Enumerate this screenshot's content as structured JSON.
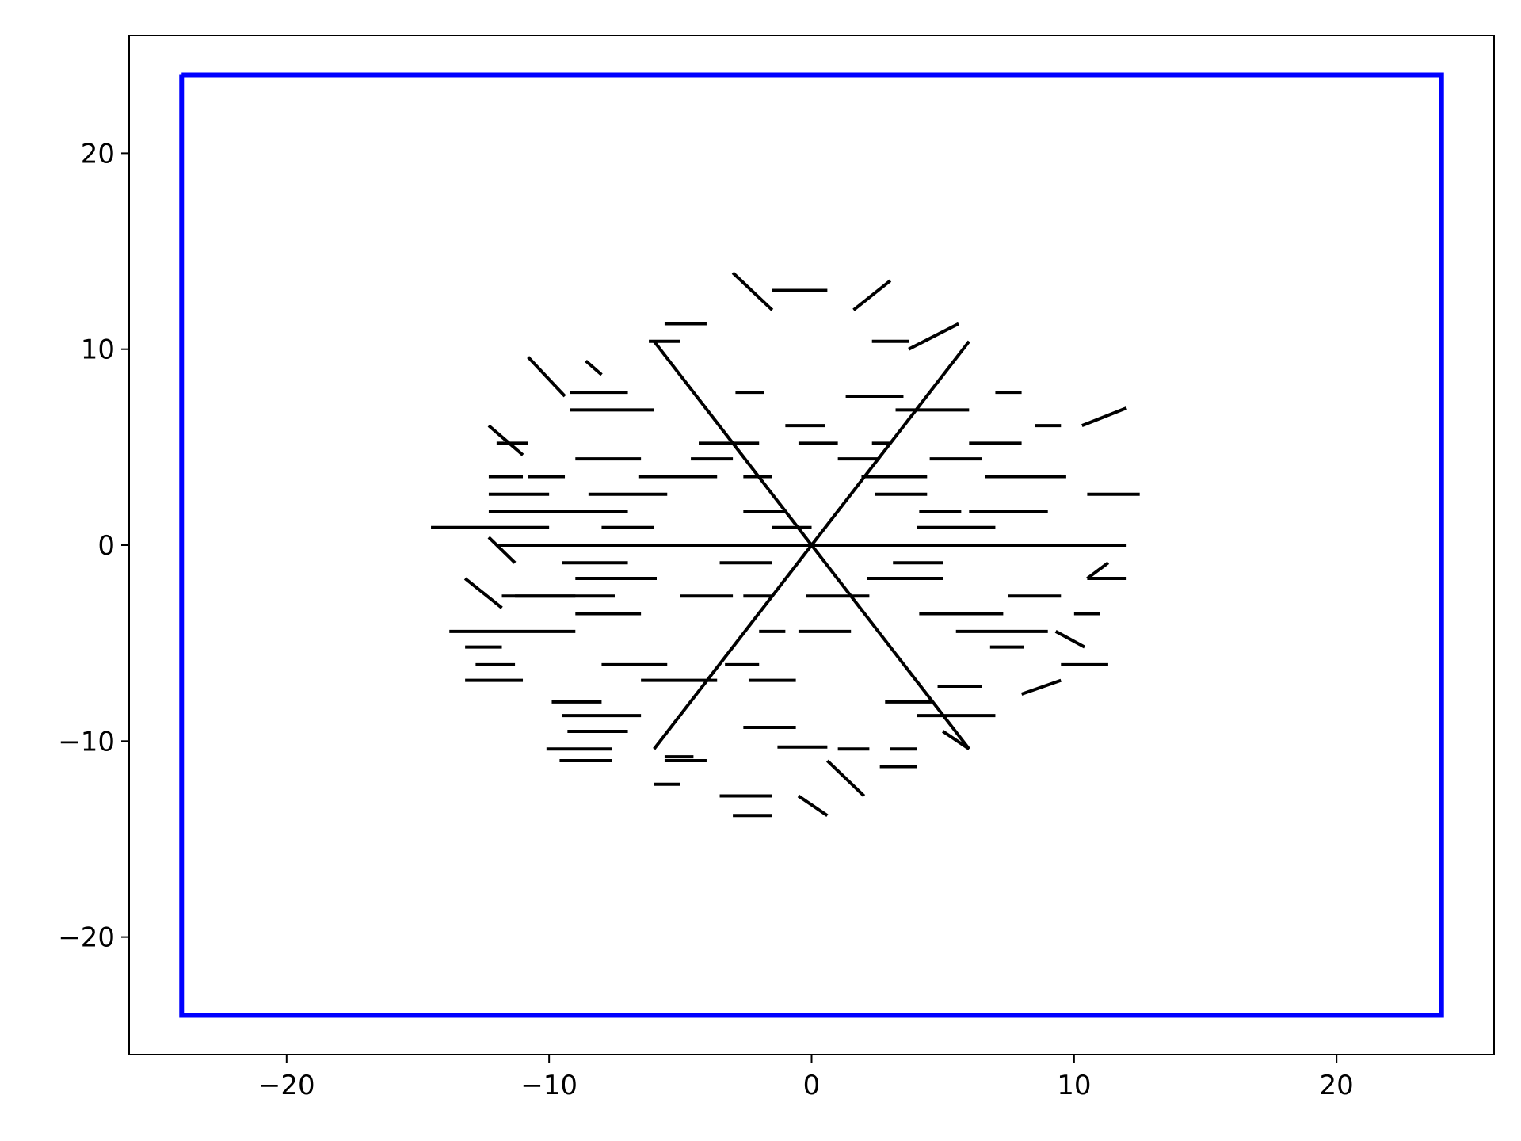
{
  "chart_data": {
    "type": "line",
    "title": "",
    "xlabel": "",
    "ylabel": "",
    "xlim": [
      -26,
      26
    ],
    "ylim": [
      -26,
      26
    ],
    "xticks": [
      -20,
      -10,
      0,
      10,
      20
    ],
    "yticks": [
      20,
      10,
      0,
      -10,
      -20
    ],
    "xtick_labels": [
      "−20",
      "−10",
      "0",
      "10",
      "20"
    ],
    "ytick_labels": [
      "20",
      "10",
      "0",
      "−10",
      "−20"
    ],
    "grid": false,
    "legend": "none",
    "colors": {
      "boundary": "#0000ff",
      "structure": "#000000",
      "axes": "#000000"
    },
    "series": [
      {
        "role": "boundary",
        "x": [
          -24,
          24,
          24,
          -24,
          -24
        ],
        "y": [
          24,
          24,
          -24,
          -24,
          24
        ]
      },
      {
        "role": "structure",
        "segments": [
          [
            [
              0,
              0
            ],
            [
              12,
              0
            ]
          ],
          [
            [
              0,
              0
            ],
            [
              -12,
              0
            ]
          ],
          [
            [
              0,
              0
            ],
            [
              6,
              10.4
            ]
          ],
          [
            [
              0,
              0
            ],
            [
              -6,
              10.4
            ]
          ],
          [
            [
              0,
              0
            ],
            [
              6,
              -10.4
            ]
          ],
          [
            [
              0,
              0
            ],
            [
              -6,
              -10.4
            ]
          ],
          [
            [
              -14.5,
              0.9
            ],
            [
              -10,
              0.9
            ]
          ],
          [
            [
              10.5,
              2.6
            ],
            [
              12.5,
              2.6
            ]
          ],
          [
            [
              10.5,
              -1.7
            ],
            [
              12,
              -1.7
            ]
          ],
          [
            [
              -1.5,
              13
            ],
            [
              0.6,
              13
            ]
          ],
          [
            [
              -3,
              13.9
            ],
            [
              -1.5,
              12
            ]
          ],
          [
            [
              3,
              13.5
            ],
            [
              1.6,
              12
            ]
          ],
          [
            [
              -10.8,
              9.6
            ],
            [
              -9.4,
              7.6
            ]
          ],
          [
            [
              -12.3,
              6.1
            ],
            [
              -11,
              4.6
            ]
          ],
          [
            [
              -13.2,
              -1.7
            ],
            [
              -11.8,
              -3.2
            ]
          ],
          [
            [
              -13.8,
              -4.4
            ],
            [
              -9,
              -4.4
            ]
          ],
          [
            [
              -13.2,
              -6.9
            ],
            [
              -11,
              -6.9
            ]
          ],
          [
            [
              -10.1,
              -10.4
            ],
            [
              -7.6,
              -10.4
            ]
          ],
          [
            [
              -9.6,
              -11
            ],
            [
              -7.6,
              -11
            ]
          ],
          [
            [
              -5.6,
              -11
            ],
            [
              -4,
              -11
            ]
          ],
          [
            [
              -3.5,
              -12.8
            ],
            [
              -1.5,
              -12.8
            ]
          ],
          [
            [
              -3,
              -13.8
            ],
            [
              -1.5,
              -13.8
            ]
          ],
          [
            [
              0.6,
              -13.8
            ],
            [
              -0.5,
              -12.8
            ]
          ],
          [
            [
              2,
              -12.8
            ],
            [
              0.6,
              -11
            ]
          ],
          [
            [
              2.6,
              -11.3
            ],
            [
              4,
              -11.3
            ]
          ],
          [
            [
              3,
              -10.4
            ],
            [
              4,
              -10.4
            ]
          ],
          [
            [
              5,
              -9.5
            ],
            [
              6,
              -10.4
            ]
          ],
          [
            [
              4,
              -8.7
            ],
            [
              7,
              -8.7
            ]
          ],
          [
            [
              8,
              -7.6
            ],
            [
              9.5,
              -6.9
            ]
          ],
          [
            [
              9.5,
              -6.1
            ],
            [
              11.3,
              -6.1
            ]
          ],
          [
            [
              9.3,
              -4.4
            ],
            [
              10.4,
              -5.2
            ]
          ],
          [
            [
              10,
              -3.5
            ],
            [
              11,
              -3.5
            ]
          ],
          [
            [
              10.5,
              -1.7
            ],
            [
              11.3,
              -0.9
            ]
          ],
          [
            [
              6,
              5.2
            ],
            [
              8,
              5.2
            ]
          ],
          [
            [
              7,
              7.8
            ],
            [
              8,
              7.8
            ]
          ],
          [
            [
              8.5,
              6.1
            ],
            [
              9.5,
              6.1
            ]
          ],
          [
            [
              10.3,
              6.1
            ],
            [
              12,
              7
            ]
          ],
          [
            [
              3.7,
              10
            ],
            [
              5.6,
              11.3
            ]
          ],
          [
            [
              2.3,
              10.4
            ],
            [
              3.7,
              10.4
            ]
          ],
          [
            [
              -5.6,
              11.3
            ],
            [
              -4,
              11.3
            ]
          ],
          [
            [
              -6.2,
              10.4
            ],
            [
              -5,
              10.4
            ]
          ],
          [
            [
              -8.6,
              9.4
            ],
            [
              -8,
              8.7
            ]
          ],
          [
            [
              -9.2,
              7.8
            ],
            [
              -7,
              7.8
            ]
          ],
          [
            [
              -9.2,
              6.9
            ],
            [
              -6,
              6.9
            ]
          ],
          [
            [
              -12,
              5.2
            ],
            [
              -10.8,
              5.2
            ]
          ],
          [
            [
              -12.3,
              3.5
            ],
            [
              -11,
              3.5
            ]
          ],
          [
            [
              -12.3,
              2.6
            ],
            [
              -10,
              2.6
            ]
          ],
          [
            [
              -12.3,
              1.7
            ],
            [
              -7,
              1.7
            ]
          ],
          [
            [
              -11.3,
              -0.9
            ],
            [
              -12.3,
              0.4
            ]
          ],
          [
            [
              -11.3,
              -2.6
            ],
            [
              -9,
              -2.6
            ]
          ],
          [
            [
              -13.2,
              -5.2
            ],
            [
              -11.8,
              -5.2
            ]
          ],
          [
            [
              -12.8,
              -6.1
            ],
            [
              -11.3,
              -6.1
            ]
          ],
          [
            [
              -9.9,
              -8
            ],
            [
              -8,
              -8
            ]
          ],
          [
            [
              -9.5,
              -8.7
            ],
            [
              -6.5,
              -8.7
            ]
          ],
          [
            [
              -9.3,
              -9.5
            ],
            [
              -7,
              -9.5
            ]
          ],
          [
            [
              -5.6,
              -10.8
            ],
            [
              -4.5,
              -10.8
            ]
          ],
          [
            [
              -6,
              -12.2
            ],
            [
              -5,
              -12.2
            ]
          ],
          [
            [
              -2.6,
              -9.3
            ],
            [
              -0.6,
              -9.3
            ]
          ],
          [
            [
              -1.3,
              -10.3
            ],
            [
              0.6,
              -10.3
            ]
          ],
          [
            [
              1,
              -10.4
            ],
            [
              2.2,
              -10.4
            ]
          ],
          [
            [
              2.8,
              -8
            ],
            [
              4.6,
              -8
            ]
          ],
          [
            [
              4.8,
              -7.2
            ],
            [
              6.5,
              -7.2
            ]
          ],
          [
            [
              6.8,
              -5.2
            ],
            [
              8.1,
              -5.2
            ]
          ],
          [
            [
              5.5,
              -4.4
            ],
            [
              9,
              -4.4
            ]
          ],
          [
            [
              4.1,
              -3.5
            ],
            [
              7.3,
              -3.5
            ]
          ],
          [
            [
              7.5,
              -2.6
            ],
            [
              9.5,
              -2.6
            ]
          ],
          [
            [
              4,
              0.9
            ],
            [
              7,
              0.9
            ]
          ],
          [
            [
              6,
              1.7
            ],
            [
              9,
              1.7
            ]
          ],
          [
            [
              6.6,
              3.5
            ],
            [
              9.7,
              3.5
            ]
          ],
          [
            [
              4.5,
              4.4
            ],
            [
              6.5,
              4.4
            ]
          ],
          [
            [
              3.2,
              6.9
            ],
            [
              6,
              6.9
            ]
          ],
          [
            [
              2.3,
              5.2
            ],
            [
              3,
              5.2
            ]
          ],
          [
            [
              1.3,
              7.6
            ],
            [
              3.5,
              7.6
            ]
          ],
          [
            [
              -2.9,
              7.8
            ],
            [
              -1.8,
              7.8
            ]
          ],
          [
            [
              -4.3,
              5.2
            ],
            [
              -2,
              5.2
            ]
          ],
          [
            [
              -4.6,
              4.4
            ],
            [
              -3,
              4.4
            ]
          ],
          [
            [
              -6.6,
              3.5
            ],
            [
              -3.6,
              3.5
            ]
          ],
          [
            [
              -9,
              4.4
            ],
            [
              -6.5,
              4.4
            ]
          ],
          [
            [
              -10.8,
              3.5
            ],
            [
              -9.4,
              3.5
            ]
          ],
          [
            [
              -8.5,
              2.6
            ],
            [
              -5.5,
              2.6
            ]
          ],
          [
            [
              -8,
              0.9
            ],
            [
              -6,
              0.9
            ]
          ],
          [
            [
              -9.5,
              -0.9
            ],
            [
              -7,
              -0.9
            ]
          ],
          [
            [
              -9,
              -1.7
            ],
            [
              -5.9,
              -1.7
            ]
          ],
          [
            [
              -11.8,
              -2.6
            ],
            [
              -7.5,
              -2.6
            ]
          ],
          [
            [
              -9,
              -3.5
            ],
            [
              -6.5,
              -3.5
            ]
          ],
          [
            [
              -8,
              -6.1
            ],
            [
              -5.5,
              -6.1
            ]
          ],
          [
            [
              -6.5,
              -6.9
            ],
            [
              -3.6,
              -6.9
            ]
          ],
          [
            [
              -3.3,
              -6.1
            ],
            [
              -2,
              -6.1
            ]
          ],
          [
            [
              -2.4,
              -6.9
            ],
            [
              -0.6,
              -6.9
            ]
          ],
          [
            [
              -0.5,
              -4.4
            ],
            [
              1.5,
              -4.4
            ]
          ],
          [
            [
              -0.2,
              -2.6
            ],
            [
              2.2,
              -2.6
            ]
          ],
          [
            [
              2.1,
              -1.7
            ],
            [
              5,
              -1.7
            ]
          ],
          [
            [
              3.1,
              -0.9
            ],
            [
              5,
              -0.9
            ]
          ],
          [
            [
              4.1,
              1.7
            ],
            [
              5.7,
              1.7
            ]
          ],
          [
            [
              2.4,
              2.6
            ],
            [
              4.4,
              2.6
            ]
          ],
          [
            [
              1.9,
              3.5
            ],
            [
              4.4,
              3.5
            ]
          ],
          [
            [
              1,
              4.4
            ],
            [
              2.6,
              4.4
            ]
          ],
          [
            [
              -0.5,
              5.2
            ],
            [
              1,
              5.2
            ]
          ],
          [
            [
              -1,
              6.1
            ],
            [
              0.5,
              6.1
            ]
          ],
          [
            [
              -2.6,
              3.5
            ],
            [
              -1.5,
              3.5
            ]
          ],
          [
            [
              -2.6,
              1.7
            ],
            [
              -1,
              1.7
            ]
          ],
          [
            [
              -1.5,
              0.9
            ],
            [
              0,
              0.9
            ]
          ],
          [
            [
              -3.5,
              -0.9
            ],
            [
              -1.5,
              -0.9
            ]
          ],
          [
            [
              -5,
              -2.6
            ],
            [
              -3,
              -2.6
            ]
          ],
          [
            [
              -2.6,
              -2.6
            ],
            [
              -1.5,
              -2.6
            ]
          ],
          [
            [
              -2,
              -4.4
            ],
            [
              -1,
              -4.4
            ]
          ]
        ]
      }
    ]
  }
}
